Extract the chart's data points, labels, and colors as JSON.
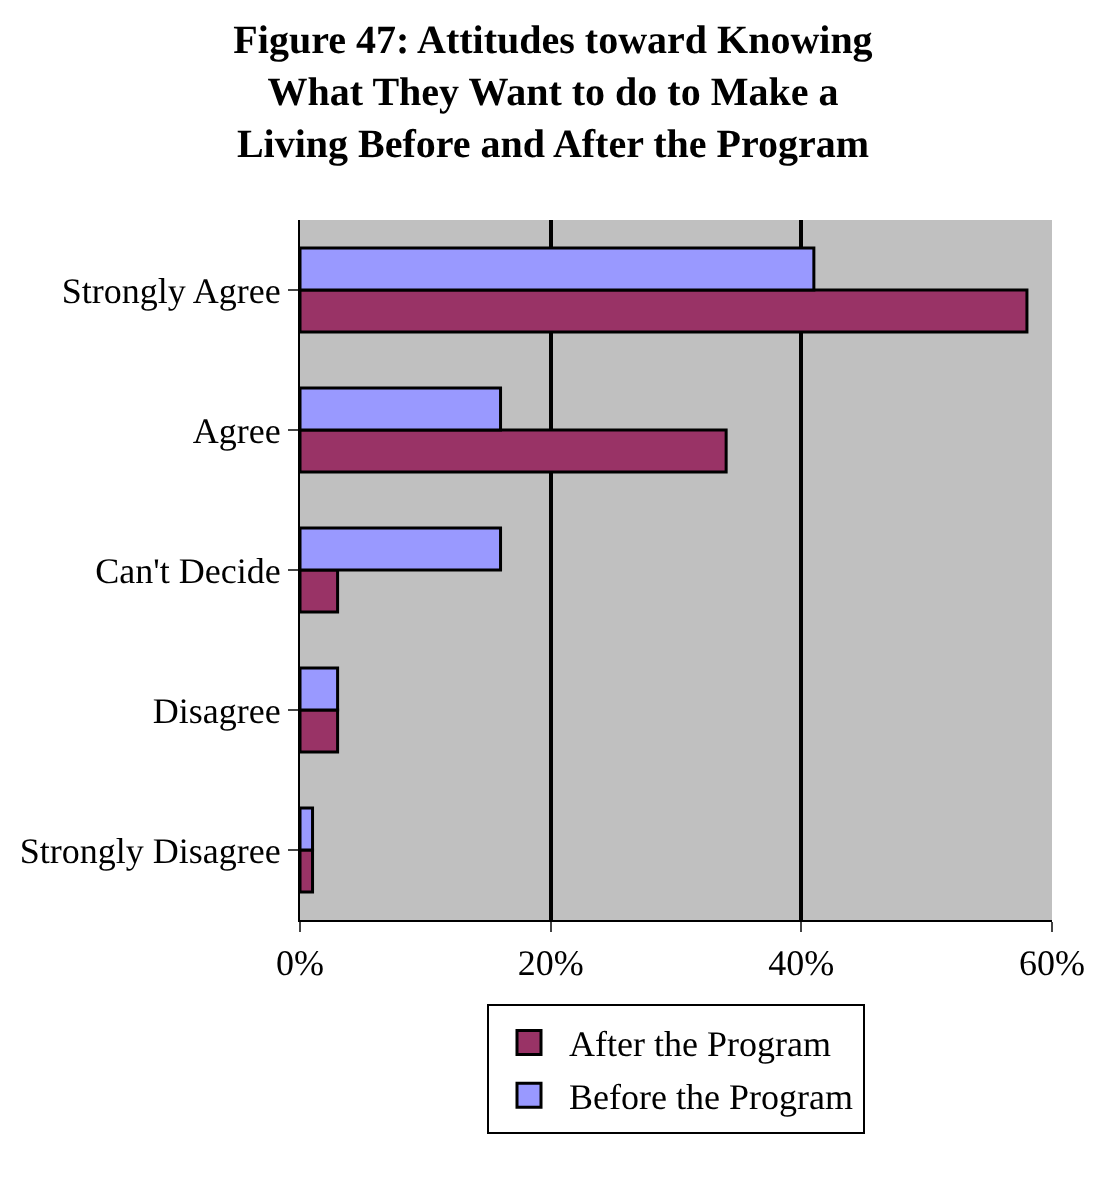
{
  "chart_data": {
    "type": "bar",
    "orientation": "horizontal",
    "title": "Figure 47: Attitudes toward Knowing\nWhat They Want to do to Make a\nLiving Before and After the Program",
    "categories": [
      "Strongly Agree",
      "Agree",
      "Can't Decide",
      "Disagree",
      "Strongly Disagree"
    ],
    "series": [
      {
        "name": "After the Program",
        "color": "#993366",
        "values": [
          58,
          34,
          3,
          3,
          1
        ]
      },
      {
        "name": "Before the Program",
        "color": "#9999ff",
        "values": [
          41,
          16,
          16,
          3,
          1
        ]
      }
    ],
    "xlim": [
      0,
      60
    ],
    "xticks": [
      {
        "value": 0,
        "label": "0%"
      },
      {
        "value": 20,
        "label": "20%"
      },
      {
        "value": 40,
        "label": "40%"
      },
      {
        "value": 60,
        "label": "60%"
      }
    ],
    "grid": "x",
    "legend": "bottom"
  }
}
